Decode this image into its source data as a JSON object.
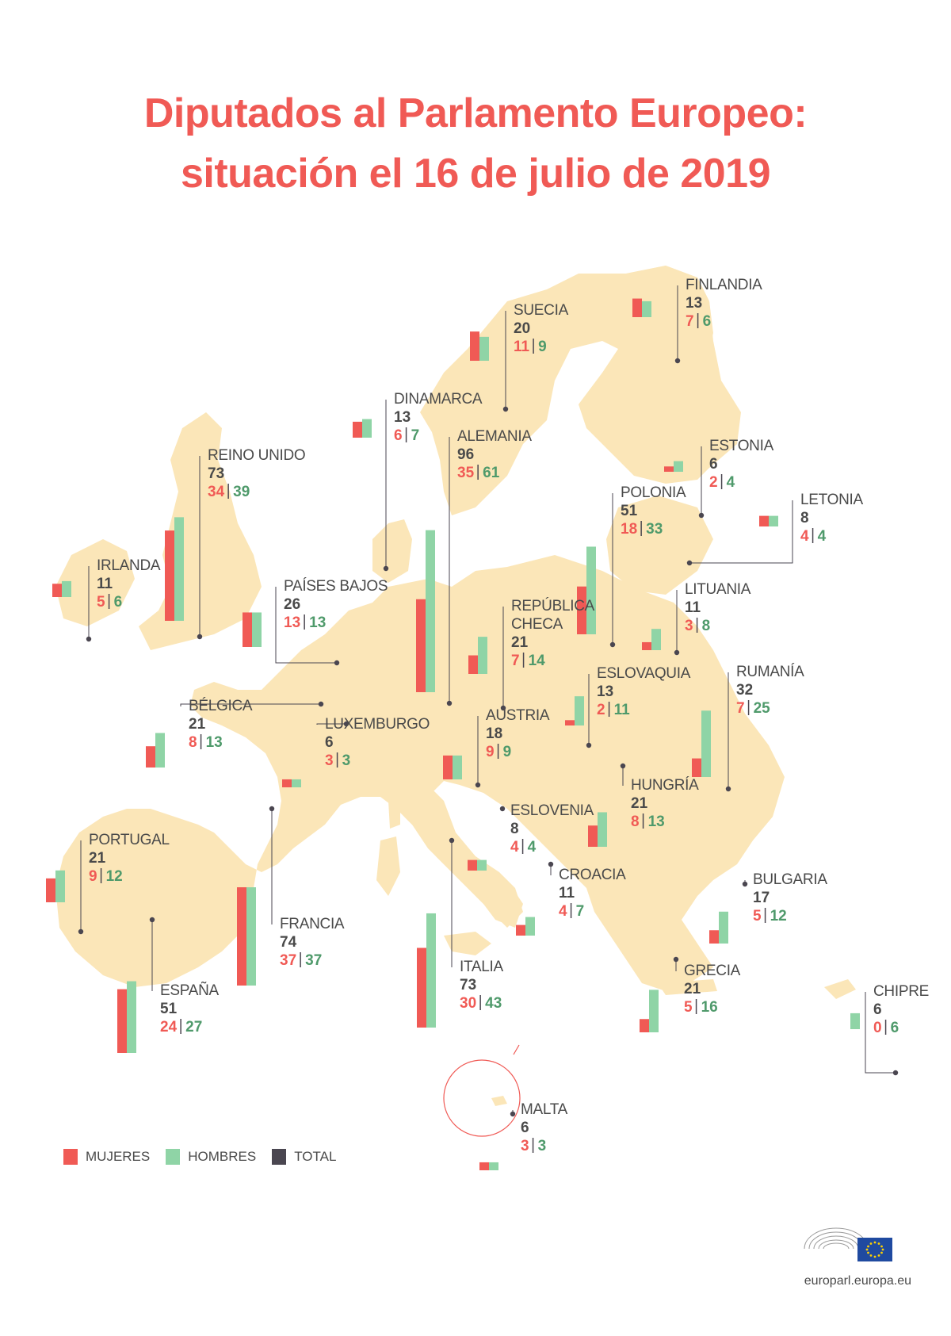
{
  "title": {
    "line1": "Diputados al Parlamento Europeo:",
    "line2": "situación el 16 de julio de 2019"
  },
  "colors": {
    "women": "#f05a55",
    "men": "#8fd4a6",
    "total": "#4a4650",
    "map": "#fbe6b8",
    "title": "#f05a55"
  },
  "legend": [
    {
      "label": "MUJERES",
      "color": "#f05a55"
    },
    {
      "label": "HOMBRES",
      "color": "#8fd4a6"
    },
    {
      "label": "TOTAL",
      "color": "#4a4650"
    }
  ],
  "countries": [
    {
      "name": "FINLANDIA",
      "total": "13",
      "women": 7,
      "men": 6
    },
    {
      "name": "SUECIA",
      "total": "20",
      "women": 11,
      "men": 9
    },
    {
      "name": "DINAMARCA",
      "total": "13",
      "women": 6,
      "men": 7
    },
    {
      "name": "ALEMANIA",
      "total": "96",
      "women": 35,
      "men": 61
    },
    {
      "name": "ESTONIA",
      "total": "6",
      "women": 2,
      "men": 4
    },
    {
      "name": "REINO UNIDO",
      "total": "73",
      "women": 34,
      "men": 39
    },
    {
      "name": "POLONIA",
      "total": "51",
      "women": 18,
      "men": 33
    },
    {
      "name": "LETONIA",
      "total": "8",
      "women": 4,
      "men": 4
    },
    {
      "name": "IRLANDA",
      "total": "11",
      "women": 5,
      "men": 6
    },
    {
      "name": "PAÍSES BAJOS",
      "total": "26",
      "women": 13,
      "men": 13
    },
    {
      "name": "LITUANIA",
      "total": "11",
      "women": 3,
      "men": 8
    },
    {
      "name": "REPÚBLICA CHECA",
      "total": "21",
      "women": 7,
      "men": 14
    },
    {
      "name": "ESLOVAQUIA",
      "total": "13",
      "women": 2,
      "men": 11
    },
    {
      "name": "RUMANÍA",
      "total": "32",
      "women": 7,
      "men": 25
    },
    {
      "name": "BÉLGICA",
      "total": "21",
      "women": 8,
      "men": 13
    },
    {
      "name": "LUXEMBURGO",
      "total": "6",
      "women": 3,
      "men": 3
    },
    {
      "name": "AUSTRIA",
      "total": "18",
      "women": 9,
      "men": 9
    },
    {
      "name": "HUNGRÍA",
      "total": "21",
      "women": 8,
      "men": 13
    },
    {
      "name": "ESLOVENIA",
      "total": "8",
      "women": 4,
      "men": 4
    },
    {
      "name": "PORTUGAL",
      "total": "21",
      "women": 9,
      "men": 12
    },
    {
      "name": "CROACIA",
      "total": "11",
      "women": 4,
      "men": 7
    },
    {
      "name": "BULGARIA",
      "total": "17",
      "women": 5,
      "men": 12
    },
    {
      "name": "FRANCIA",
      "total": "74",
      "women": 37,
      "men": 37
    },
    {
      "name": "GRECIA",
      "total": "21",
      "women": 5,
      "men": 16
    },
    {
      "name": "ITALIA",
      "total": "73",
      "women": 30,
      "men": 43
    },
    {
      "name": "ESPAÑA",
      "total": "51",
      "women": 24,
      "men": 27
    },
    {
      "name": "CHIPRE",
      "total": "6",
      "women": 0,
      "men": 6
    },
    {
      "name": "MALTA",
      "total": "6",
      "women": 3,
      "men": 3
    }
  ],
  "site": "europarl.europa.eu"
}
